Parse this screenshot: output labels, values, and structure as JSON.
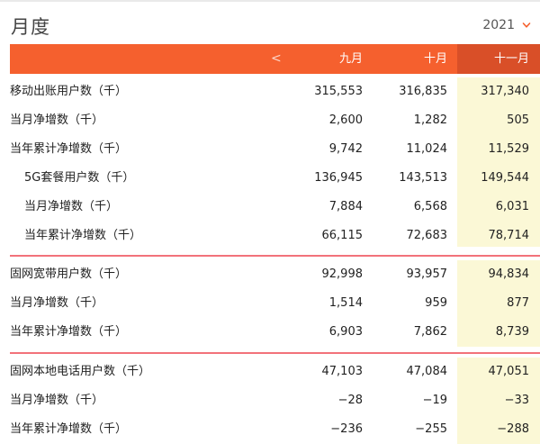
{
  "header": {
    "title": "月度",
    "year": "2021"
  },
  "table": {
    "prev_label": "<",
    "columns": [
      "九月",
      "十月",
      "十一月"
    ],
    "sections": [
      {
        "rows": [
          {
            "label": "移动出账用户数（千）",
            "values": [
              "315,553",
              "316,835",
              "317,340"
            ]
          },
          {
            "label": "当月净增数（千）",
            "values": [
              "2,600",
              "1,282",
              "505"
            ]
          },
          {
            "label": "当年累计净增数（千）",
            "values": [
              "9,742",
              "11,024",
              "11,529"
            ]
          },
          {
            "label": "5G套餐用户数（千）",
            "values": [
              "136,945",
              "143,513",
              "149,544"
            ]
          },
          {
            "label": "当月净增数（千）",
            "values": [
              "7,884",
              "6,568",
              "6,031"
            ]
          },
          {
            "label": "当年累计净增数（千）",
            "values": [
              "66,115",
              "72,683",
              "78,714"
            ]
          }
        ]
      },
      {
        "rows": [
          {
            "label": "固网宽带用户数（千）",
            "values": [
              "92,998",
              "93,957",
              "94,834"
            ]
          },
          {
            "label": "当月净增数（千）",
            "values": [
              "1,514",
              "959",
              "877"
            ]
          },
          {
            "label": "当年累计净增数（千）",
            "values": [
              "6,903",
              "7,862",
              "8,739"
            ]
          }
        ]
      },
      {
        "rows": [
          {
            "label": "固网本地电话用户数（千）",
            "values": [
              "47,103",
              "47,084",
              "47,051"
            ]
          },
          {
            "label": "当月净增数（千）",
            "values": [
              "−28",
              "−19",
              "−33"
            ]
          },
          {
            "label": "当年累计净增数（千）",
            "values": [
              "−236",
              "−255",
              "−288"
            ]
          }
        ]
      }
    ]
  },
  "colors": {
    "header_bg": "#f5602e",
    "highlight_header": "#d94f28",
    "highlight_col": "#fbf8d6",
    "separator": "#f2727a"
  }
}
